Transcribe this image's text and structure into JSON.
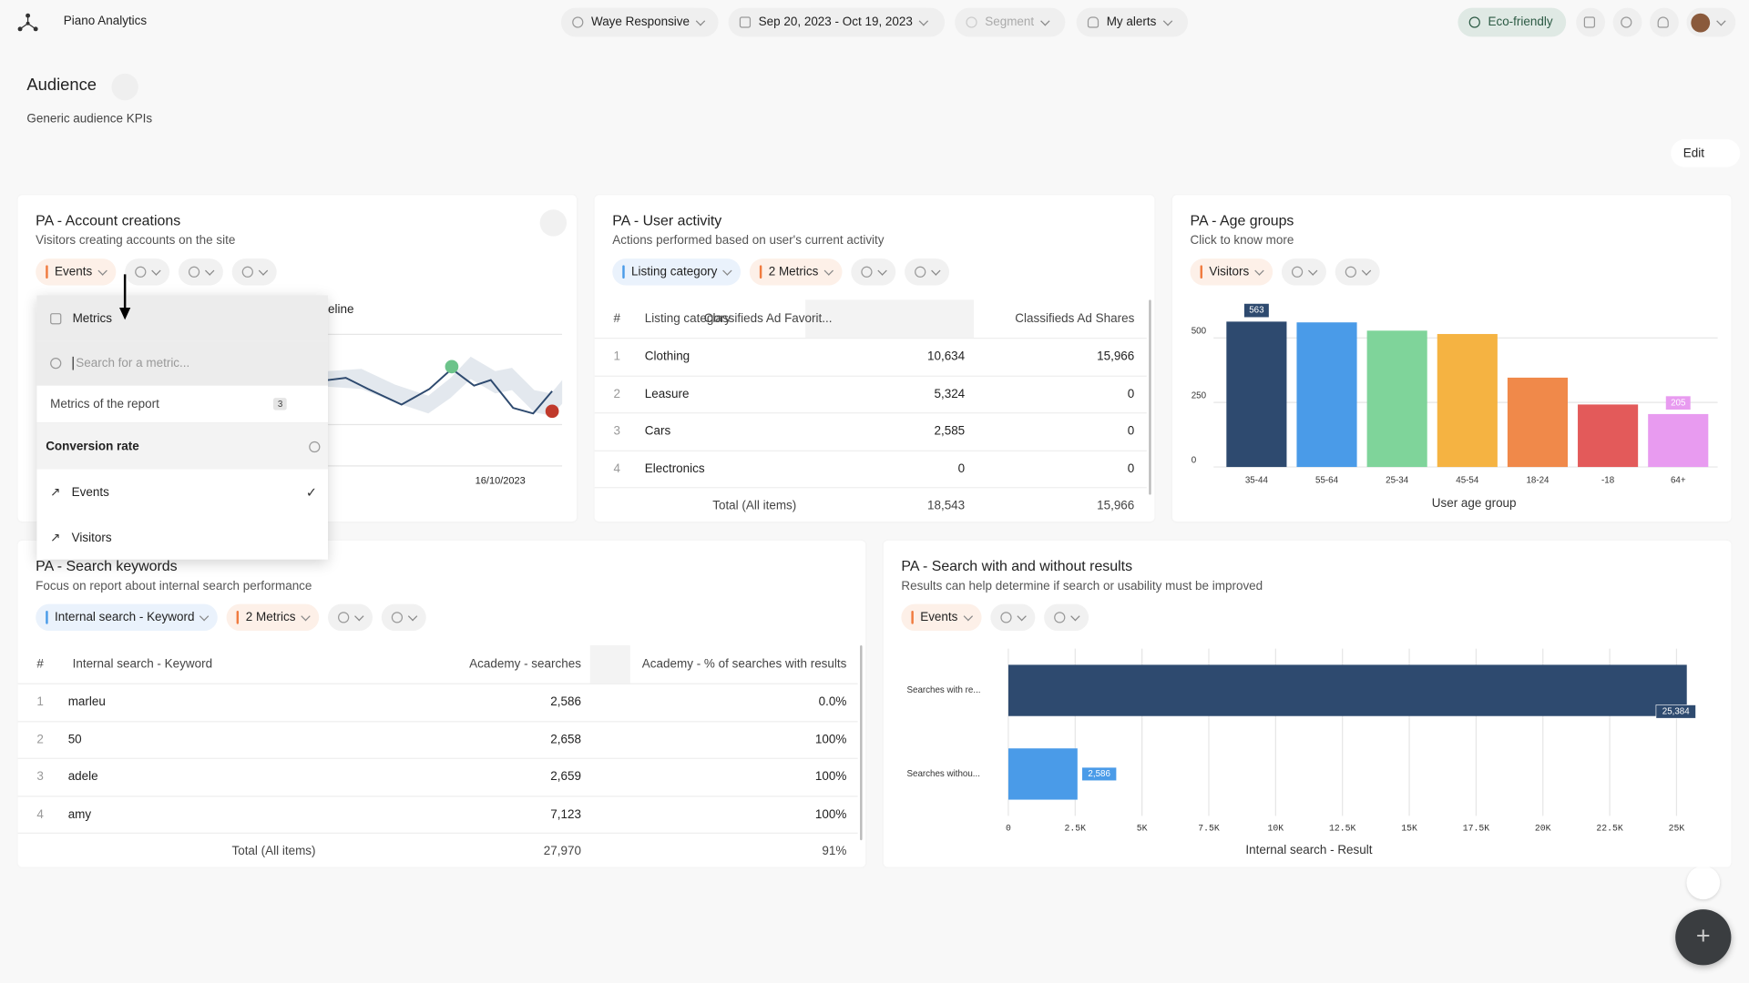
{
  "header": {
    "app_name": "Piano Analytics",
    "site": "Waye Responsive",
    "date_range": "Sep 20, 2023 - Oct 19, 2023",
    "segment": "Segment",
    "alerts": "My alerts",
    "eco": "Eco-friendly"
  },
  "page": {
    "title": "Audience",
    "subtitle": "Generic audience KPIs",
    "edit": "Edit"
  },
  "widgets": [
    {
      "title": "PA - Account creations",
      "subtitle": "Visitors creating accounts on the site",
      "chips": [
        {
          "label": "Events",
          "color": "#f07b3f"
        }
      ],
      "chart_label": "eline",
      "x_label": "16/10/2023",
      "dropdown": {
        "title": "Metrics",
        "search_placeholder": "Search for a metric...",
        "section": "Metrics of the report",
        "section_count": 3,
        "items": [
          "Conversion rate",
          "Events",
          "Visitors"
        ],
        "checked": [
          false,
          true,
          false
        ]
      }
    },
    {
      "title": "PA - User activity",
      "subtitle": "Actions performed based on user's current activity",
      "chips": [
        {
          "label": "Listing category",
          "color": "#4a9be8"
        },
        {
          "label": "2 Metrics",
          "color": "#f07b3f"
        }
      ],
      "table": {
        "columns": [
          "#",
          "Listing category",
          "Classifieds Ad Favorit...",
          "Classifieds Ad Shares"
        ],
        "rows": [
          [
            1,
            "Clothing",
            "10,634",
            "15,966"
          ],
          [
            2,
            "Leasure",
            "5,324",
            "0"
          ],
          [
            3,
            "Cars",
            "2,585",
            "0"
          ],
          [
            4,
            "Electronics",
            "0",
            "0"
          ]
        ],
        "total": [
          "Total (All items)",
          "18,543",
          "15,966"
        ]
      }
    },
    {
      "title": "PA - Age groups",
      "subtitle": "Click to know more",
      "chips": [
        {
          "label": "Visitors",
          "color": "#f07b3f"
        }
      ],
      "chart_data": {
        "type": "bar",
        "categories": [
          "35-44",
          "55-64",
          "25-34",
          "45-54",
          "18-24",
          "-18",
          "64+"
        ],
        "values": [
          563,
          560,
          528,
          515,
          346,
          242,
          205
        ],
        "value_labels": [
          "563",
          null,
          null,
          null,
          null,
          null,
          "205"
        ],
        "colors": [
          "#2e4a6f",
          "#4a9be8",
          "#7fd49a",
          "#f5b342",
          "#f0894a",
          "#e35a5a",
          "#e89bf0"
        ],
        "ylim": [
          0,
          600
        ],
        "yticks": [
          0,
          250,
          500
        ],
        "grid": true,
        "x_label": "User age group"
      }
    },
    {
      "title": "PA - Search keywords",
      "subtitle": "Focus on report about internal search performance",
      "chips": [
        {
          "label": "Internal search - Keyword",
          "color": "#4a9be8"
        },
        {
          "label": "2 Metrics",
          "color": "#f07b3f"
        }
      ],
      "table": {
        "columns": [
          "#",
          "Internal search - Keyword",
          "Academy - searches",
          "Academy - % of searches with results"
        ],
        "rows": [
          [
            1,
            "marleu",
            "2,586",
            "0.0%"
          ],
          [
            2,
            "50",
            "2,658",
            "100%"
          ],
          [
            3,
            "adele",
            "2,659",
            "100%"
          ],
          [
            4,
            "amy",
            "7,123",
            "100%"
          ]
        ],
        "total": [
          "Total (All items)",
          "27,970",
          "91%"
        ]
      }
    },
    {
      "title": "PA - Search with and without results",
      "subtitle": "Results can help determine if search or usability must be improved",
      "chips": [
        {
          "label": "Events",
          "color": "#f07b3f"
        }
      ],
      "chart_data": {
        "type": "hbar",
        "categories": [
          "Searches with re...",
          "Searches withou..."
        ],
        "values": [
          25384,
          2586
        ],
        "value_labels": [
          "25,384",
          "2,586"
        ],
        "colors": [
          "#2e4a6f",
          "#4a9be8"
        ],
        "xlim": [
          0,
          26000
        ],
        "xticks": [
          0,
          {
            "value": 2500,
            "label": "2.5K"
          },
          {
            "value": 5000,
            "label": "5K"
          },
          {
            "value": 7500,
            "label": "7.5K"
          },
          {
            "value": 10000,
            "label": "10K"
          },
          {
            "value": 12500,
            "label": "12.5K"
          },
          {
            "value": 15000,
            "label": "15K"
          },
          {
            "value": 17500,
            "label": "17.5K"
          },
          {
            "value": 20000,
            "label": "20K"
          },
          {
            "value": 22500,
            "label": "22.5K"
          },
          {
            "value": 25000,
            "label": "25K"
          }
        ],
        "grid": true,
        "x_label": "Internal search - Result"
      }
    }
  ]
}
